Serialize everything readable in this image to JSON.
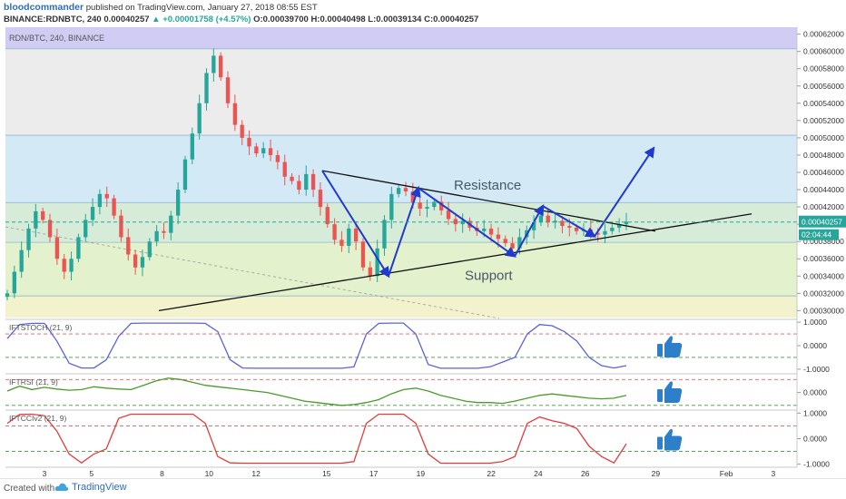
{
  "header": {
    "author": "bloodcommander",
    "published": " published on TradingView.com, January 27, 2018 08:55 EST",
    "symbol_line": "BINANCE:RDNBTC, 240",
    "price": "0.00040257",
    "change_arrow": "▲",
    "change": "+0.00001758 (+4.57%)",
    "ohlc": "O:0.00039700 H:0.00040498 L:0.00039134 C:0.00040257"
  },
  "footer": {
    "created_with": "Created with",
    "brand": "TradingView"
  },
  "colors": {
    "up": "#26a69a",
    "down": "#ef5350",
    "pattern_arrows": "#1e3acf",
    "trendlines": "#111111",
    "iftstoch_line": "#5b62d6",
    "iftrsi_line": "#4c9a2a",
    "iftcci_line": "#e33b3b",
    "thumbs_up": "#2d7fc8"
  },
  "chart_data": [
    {
      "type": "candlestick",
      "title": "RDN/BTC, 240, BINANCE",
      "x_tick_labels": [
        "3",
        "5",
        "8",
        "10",
        "12",
        "15",
        "17",
        "19",
        "22",
        "24",
        "26",
        "29",
        "Feb",
        "3"
      ],
      "y_tick_labels": [
        "0.00062000",
        "0.00060000",
        "0.00058000",
        "0.00056000",
        "0.00054000",
        "0.00052000",
        "0.00050000",
        "0.00048000",
        "0.00046000",
        "0.00044000",
        "0.00042000",
        "0.00040000",
        "0.00038000",
        "0.00036000",
        "0.00034000",
        "0.00032000",
        "0.00030000"
      ],
      "ylim": [
        0.000292,
        0.000628
      ],
      "last_price_label": "0.00040257",
      "countdown_label": "02:04:44",
      "shaded_bands": [
        {
          "from": 0.000603,
          "to": 0.000628,
          "color": "#d1ccf3"
        },
        {
          "from": 0.000503,
          "to": 0.000603,
          "color": "#ececec"
        },
        {
          "from": 0.000425,
          "to": 0.000503,
          "color": "#d3e9f6"
        },
        {
          "from": 0.000379,
          "to": 0.000425,
          "color": "#d6ecd8"
        },
        {
          "from": 0.000317,
          "to": 0.000379,
          "color": "#e3f1cd"
        },
        {
          "from": 0.000292,
          "to": 0.000317,
          "color": "#f2f3cd"
        }
      ],
      "band_lines": [
        0.000603,
        0.000503,
        0.000425,
        0.000379,
        0.000317
      ],
      "last_price": 0.00040257,
      "close_series": [
        0.00032,
        0.000345,
        0.00037,
        0.000395,
        0.000415,
        0.000405,
        0.000385,
        0.00036,
        0.000345,
        0.00036,
        0.000385,
        0.000405,
        0.00042,
        0.000435,
        0.00043,
        0.00041,
        0.000385,
        0.000365,
        0.00035,
        0.000362,
        0.00038,
        0.000392,
        0.00039,
        0.00041,
        0.00044,
        0.000475,
        0.000505,
        0.00054,
        0.000575,
        0.000595,
        0.00057,
        0.00054,
        0.000515,
        0.0005,
        0.00049,
        0.000482,
        0.000488,
        0.00048,
        0.000472,
        0.000455,
        0.00045,
        0.00044,
        0.000458,
        0.00044,
        0.00042,
        0.0004,
        0.000382,
        0.000375,
        0.000395,
        0.00038,
        0.00035,
        0.00034,
        0.000372,
        0.000405,
        0.000435,
        0.000442,
        0.000438,
        0.000425,
        0.000418,
        0.00042,
        0.000426,
        0.000416,
        0.000406,
        0.0004,
        0.000404,
        0.000396,
        0.000392,
        0.000395,
        0.000388,
        0.000383,
        0.000378,
        0.000372,
        0.000385,
        0.000393,
        0.000402,
        0.00041,
        0.000402,
        0.000404,
        0.000398,
        0.000396,
        0.000392,
        0.000394,
        0.00039,
        0.000388,
        0.000392,
        0.000396,
        0.0004,
        0.000403
      ],
      "annotations": [
        {
          "text": "Resistance"
        },
        {
          "text": "Support"
        }
      ],
      "trendlines": [
        {
          "name": "resistance",
          "points": [
            [
              0.000462,
              "15"
            ],
            [
              0.000392,
              "28"
            ]
          ]
        },
        {
          "name": "support",
          "points": [
            [
              0.0003,
              "10"
            ],
            [
              0.000412,
              "31"
            ]
          ]
        }
      ],
      "pattern_arrows_y": [
        0.000462,
        0.00034,
        0.000442,
        0.000363,
        0.000421,
        0.000386,
        0.000488
      ]
    },
    {
      "type": "line",
      "title": "IFTSTOCH (21, 9)",
      "y_tick_labels": [
        "1.0000",
        "0.0000",
        "-1.0000"
      ],
      "ylim": [
        -1.12,
        1.12
      ],
      "reference_levels": [
        0.5,
        -0.5
      ],
      "values": [
        0.3,
        0.9,
        0.95,
        0.95,
        0.2,
        -0.75,
        -0.95,
        -0.95,
        -0.6,
        0.4,
        0.95,
        0.96,
        0.96,
        0.96,
        0.96,
        0.96,
        0.95,
        0.6,
        -0.6,
        -0.95,
        -0.96,
        -0.96,
        -0.96,
        -0.96,
        -0.96,
        -0.96,
        -0.96,
        -0.96,
        -0.9,
        0.5,
        0.95,
        0.96,
        0.96,
        0.5,
        -0.8,
        -0.96,
        -0.96,
        -0.96,
        -0.96,
        -0.9,
        -0.7,
        -0.5,
        0.5,
        0.9,
        0.85,
        0.6,
        0.2,
        -0.5,
        -0.85,
        -0.95,
        -0.85
      ]
    },
    {
      "type": "line",
      "title": "IFTRSI (21, 9)",
      "y_tick_labels": [
        "0.0000"
      ],
      "ylim": [
        -0.55,
        0.65
      ],
      "reference_levels": [
        0.45,
        -0.45
      ],
      "values": [
        0.05,
        0.22,
        0.1,
        0.18,
        0.12,
        0.08,
        0.1,
        0.2,
        0.15,
        0.12,
        0.1,
        0.25,
        0.4,
        0.5,
        0.45,
        0.35,
        0.25,
        0.2,
        0.15,
        0.1,
        0.05,
        0.0,
        -0.1,
        -0.2,
        -0.3,
        -0.35,
        -0.4,
        -0.45,
        -0.42,
        -0.35,
        -0.25,
        -0.05,
        0.1,
        0.15,
        0.05,
        -0.1,
        -0.2,
        -0.3,
        -0.35,
        -0.35,
        -0.38,
        -0.3,
        -0.2,
        -0.1,
        -0.05,
        -0.1,
        -0.15,
        -0.2,
        -0.22,
        -0.2,
        -0.1
      ]
    },
    {
      "type": "line",
      "title": "IFTCCIv2 (21, 9)",
      "y_tick_labels": [
        "1.0000",
        "0.0000",
        "-1.0000"
      ],
      "ylim": [
        -1.12,
        1.12
      ],
      "reference_levels": [
        0.5,
        -0.5
      ],
      "values": [
        0.6,
        0.95,
        0.96,
        0.9,
        0.3,
        -0.6,
        -0.95,
        -0.6,
        -0.4,
        0.8,
        0.96,
        0.96,
        0.96,
        0.96,
        0.96,
        0.96,
        0.6,
        -0.7,
        -0.95,
        -0.96,
        -0.96,
        -0.96,
        -0.96,
        -0.96,
        -0.96,
        -0.96,
        -0.96,
        -0.96,
        -0.9,
        0.6,
        0.96,
        0.96,
        0.96,
        0.6,
        -0.6,
        -0.96,
        -0.96,
        -0.96,
        -0.96,
        -0.96,
        -0.9,
        -0.7,
        0.6,
        0.85,
        0.7,
        0.6,
        0.4,
        -0.3,
        -0.7,
        -0.95,
        -0.2
      ]
    }
  ]
}
